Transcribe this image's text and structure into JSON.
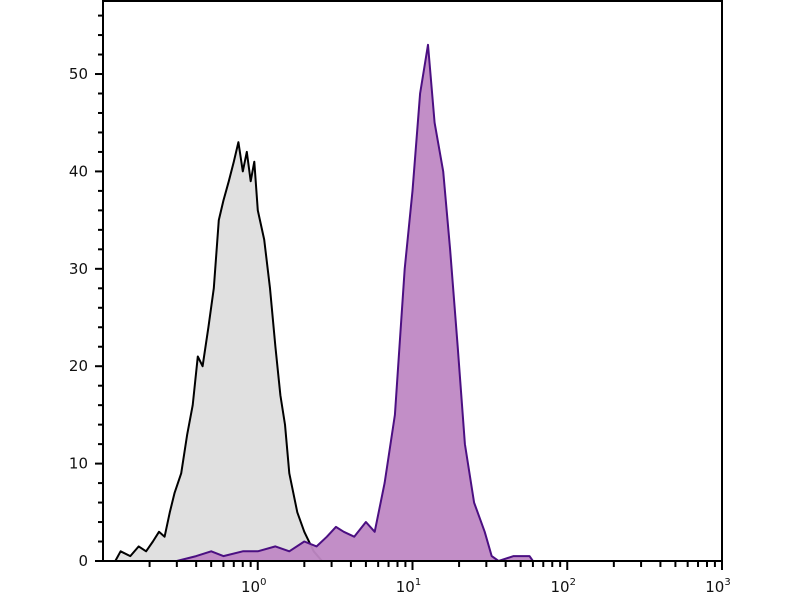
{
  "chart_data": {
    "type": "area",
    "title": "",
    "xlabel": "",
    "ylabel": "",
    "x_scale": "log",
    "xlim": [
      0.1,
      1000
    ],
    "ylim": [
      0,
      57.6
    ],
    "grid": false,
    "x_tick_labels": [
      {
        "value": 1,
        "base": "10",
        "exp": "0"
      },
      {
        "value": 10,
        "base": "10",
        "exp": "1"
      },
      {
        "value": 100,
        "base": "10",
        "exp": "2"
      },
      {
        "value": 1000,
        "base": "10",
        "exp": "3"
      }
    ],
    "y_tick_labels": [
      "0",
      "10",
      "20",
      "30",
      "40",
      "50"
    ],
    "y_ticks": [
      0,
      10,
      20,
      30,
      40,
      50
    ],
    "series": [
      {
        "fill": "#dedede",
        "stroke": "#000000",
        "x": [
          0.12,
          0.13,
          0.15,
          0.17,
          0.19,
          0.21,
          0.23,
          0.25,
          0.27,
          0.29,
          0.32,
          0.35,
          0.38,
          0.41,
          0.44,
          0.48,
          0.52,
          0.56,
          0.6,
          0.65,
          0.7,
          0.75,
          0.8,
          0.85,
          0.9,
          0.95,
          1.0,
          1.1,
          1.2,
          1.3,
          1.4,
          1.5,
          1.6,
          1.8,
          2.0,
          2.3,
          2.6
        ],
        "y": [
          0,
          1,
          0.5,
          1.5,
          1,
          2,
          3,
          2.5,
          5,
          7,
          9,
          13,
          16,
          21,
          20,
          24,
          28,
          35,
          37,
          39,
          41,
          43,
          40,
          42,
          39,
          41,
          36,
          33,
          28,
          22,
          17,
          14,
          9,
          5,
          3,
          1,
          0
        ]
      },
      {
        "fill": "#bf88c4",
        "stroke": "#4b0f82",
        "x": [
          0.3,
          0.4,
          0.5,
          0.6,
          0.8,
          1.0,
          1.3,
          1.6,
          2.0,
          2.4,
          2.8,
          3.2,
          3.6,
          4.2,
          5.0,
          5.7,
          6.6,
          7.7,
          8.9,
          10,
          11.2,
          12.6,
          13.9,
          15.8,
          17.5,
          19.6,
          21.8,
          25,
          29.3,
          32.5,
          36,
          45,
          57,
          60
        ],
        "y": [
          0,
          0.5,
          1,
          0.5,
          1,
          1,
          1.5,
          1,
          2,
          1.5,
          2.5,
          3.5,
          3,
          2.5,
          4,
          3,
          8,
          15,
          30,
          38,
          48,
          53,
          45,
          40,
          32,
          22,
          12,
          6,
          3,
          0.5,
          0,
          0.5,
          0.5,
          0
        ]
      }
    ]
  }
}
